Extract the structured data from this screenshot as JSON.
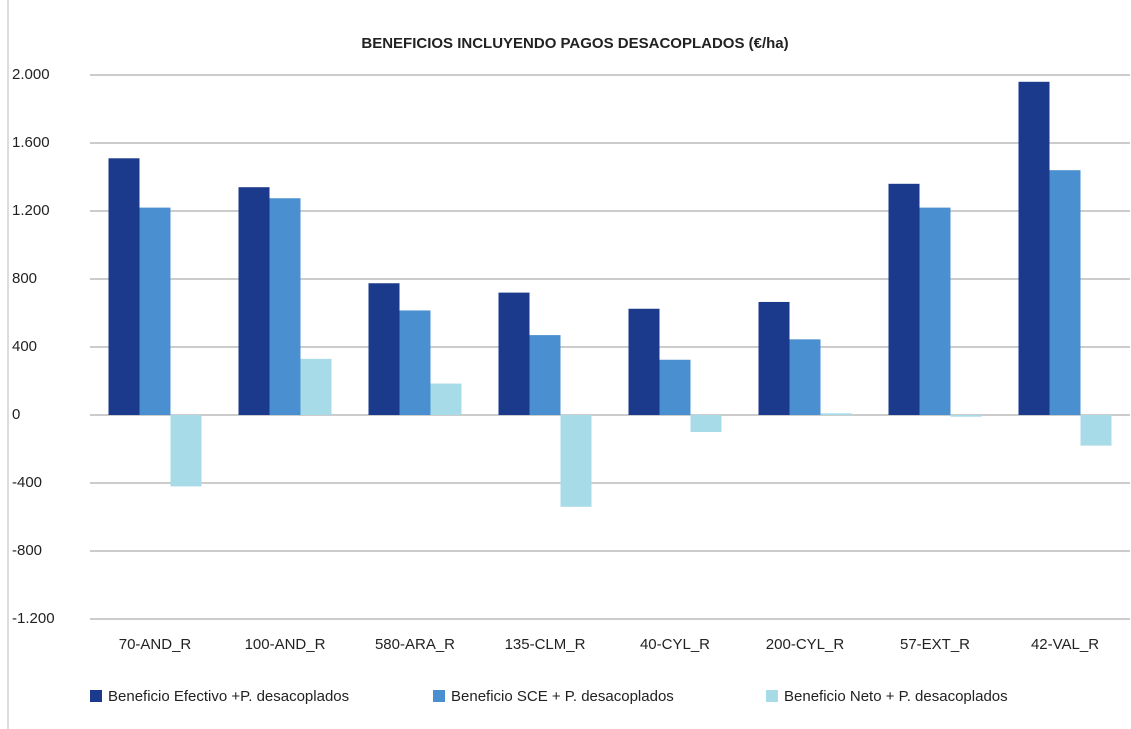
{
  "chart_data": {
    "type": "bar",
    "title": "BENEFICIOS INCLUYENDO PAGOS DESACOPLADOS (€/ha)",
    "categories": [
      "70-AND_R",
      "100-AND_R",
      "580-ARA_R",
      "135-CLM_R",
      "40-CYL_R",
      "200-CYL_R",
      "57-EXT_R",
      "42-VAL_R"
    ],
    "series": [
      {
        "name": "Beneficio Efectivo +P. desacoplados",
        "color": "#1b3a8c",
        "values": [
          1510,
          1340,
          775,
          720,
          625,
          665,
          1360,
          1960
        ]
      },
      {
        "name": "Beneficio SCE + P. desacoplados",
        "color": "#4a8fcf",
        "values": [
          1220,
          1275,
          615,
          470,
          325,
          445,
          1220,
          1440
        ]
      },
      {
        "name": "Beneficio Neto + P. desacoplados",
        "color": "#a8dbe8",
        "values": [
          -420,
          330,
          185,
          -540,
          -100,
          10,
          -10,
          -180
        ]
      }
    ],
    "ylim": [
      -1200,
      2000
    ],
    "yticks": [
      {
        "value": -1200,
        "label": "-1.200"
      },
      -800,
      -400,
      0,
      400,
      800,
      {
        "value": 1200,
        "label": "1.200"
      },
      {
        "value": 1600,
        "label": "1.600"
      },
      {
        "value": 2000,
        "label": "2.000"
      }
    ],
    "grid": true,
    "legend": "bottom"
  }
}
